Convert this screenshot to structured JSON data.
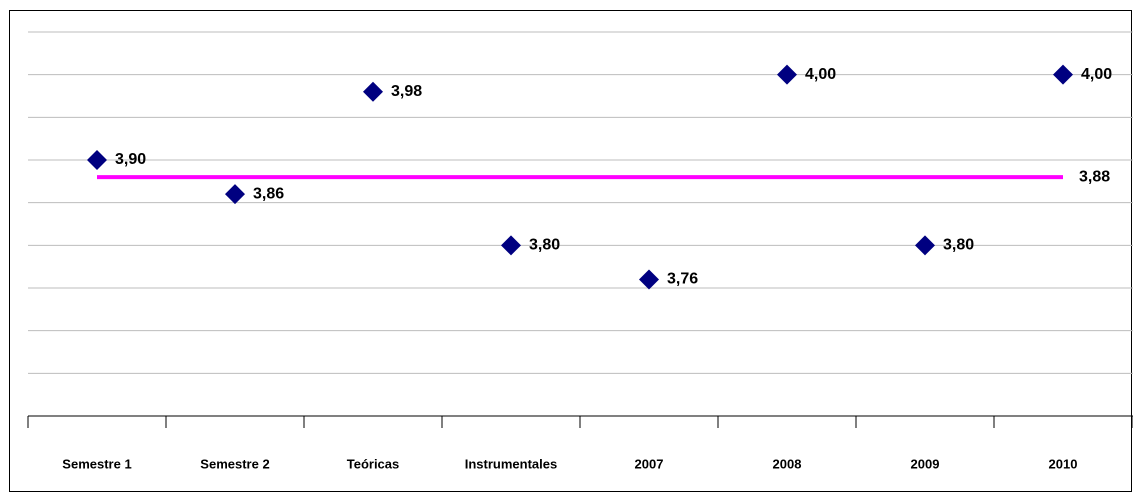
{
  "chart_data": {
    "type": "scatter",
    "categories": [
      "Semestre 1",
      "Semestre 2",
      "Teóricas",
      "Instrumentales",
      "2007",
      "2008",
      "2009",
      "2010"
    ],
    "values": [
      3.9,
      3.86,
      3.98,
      3.8,
      3.76,
      4.0,
      3.8,
      4.0
    ],
    "value_labels": [
      "3,90",
      "3,86",
      "3,98",
      "3,80",
      "3,76",
      "4,00",
      "3,80",
      "4,00"
    ],
    "color": "#000080",
    "reference_line": {
      "value": 3.88,
      "label": "3,88",
      "color": "#ff00ff"
    },
    "ylim": [
      3.6,
      4.05
    ],
    "yticks": [
      3.65,
      3.7,
      3.75,
      3.8,
      3.85,
      3.9,
      3.95,
      4.0,
      4.05
    ],
    "ytick_labels": false,
    "grid": true
  }
}
